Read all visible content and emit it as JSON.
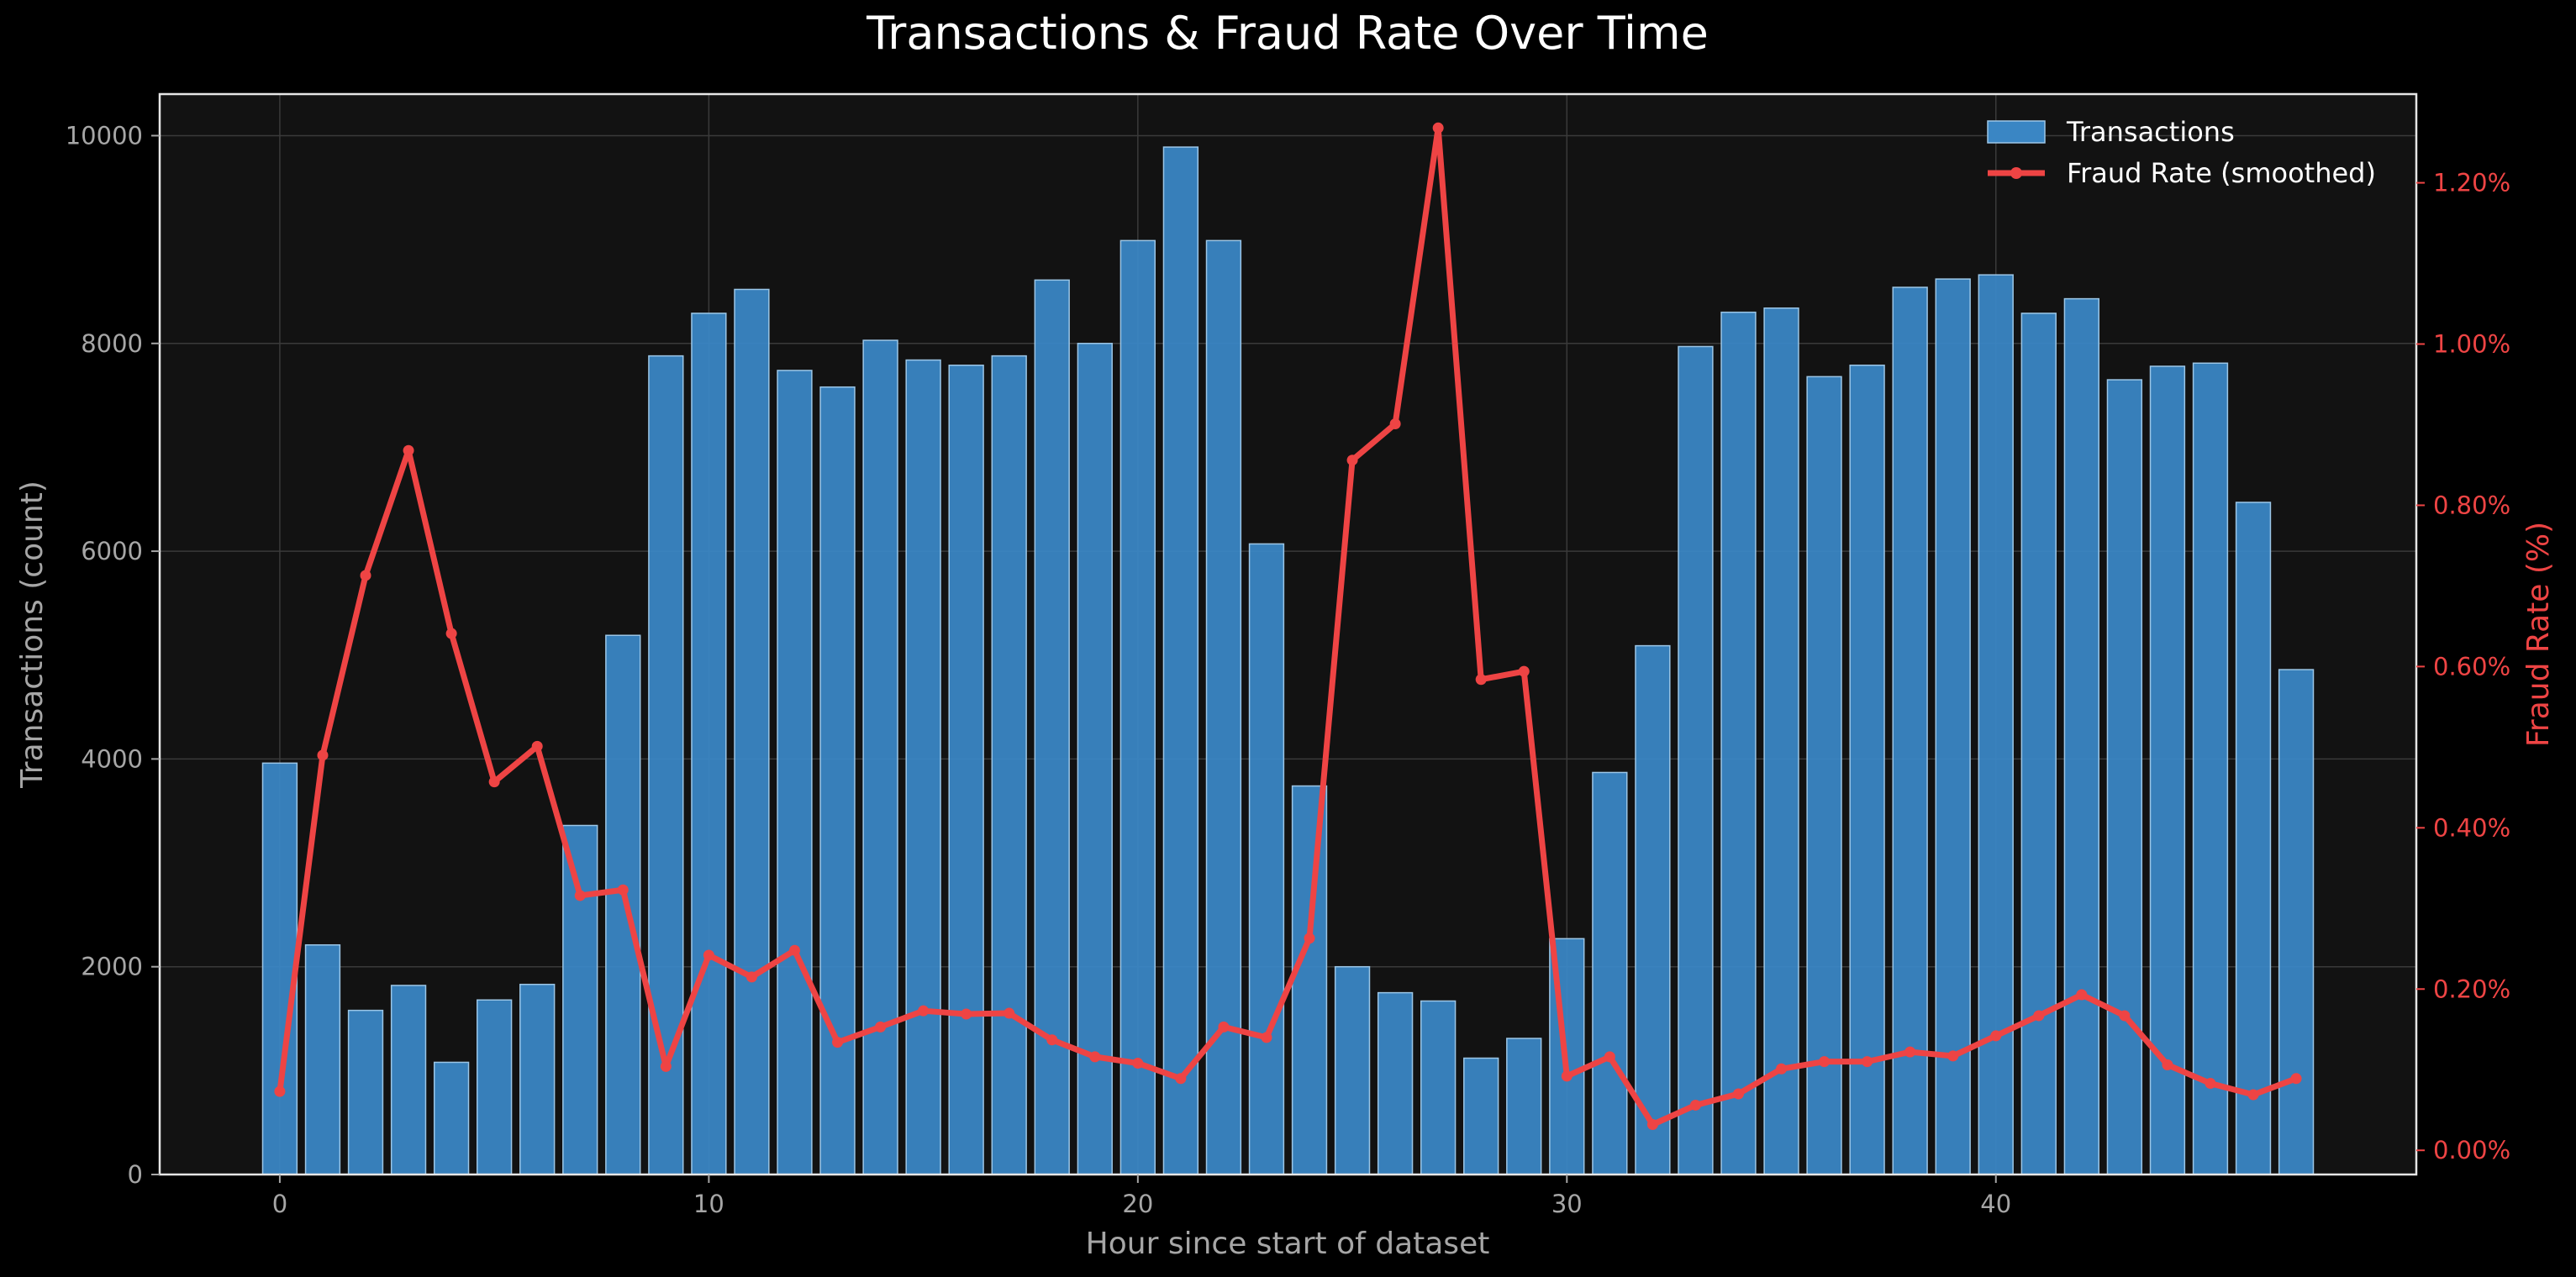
{
  "chart_data": {
    "type": "bar",
    "title": "Transactions & Fraud Rate Over Time",
    "xlabel": "Hour since start of dataset",
    "ylabel": "Transactions (count)",
    "y2label": "Fraud Rate (%)",
    "xlim": [
      -2.8,
      49.8
    ],
    "ylim": [
      0,
      10400
    ],
    "y2lim": [
      -0.03,
      1.31
    ],
    "xticks": [
      0,
      10,
      20,
      30,
      40
    ],
    "yticks": [
      0,
      2000,
      4000,
      6000,
      8000,
      10000
    ],
    "y2ticks": [
      0,
      0.2,
      0.4,
      0.6,
      0.8,
      1.0,
      1.2
    ],
    "y2tick_labels": [
      "0.00%",
      "0.20%",
      "0.40%",
      "0.60%",
      "0.80%",
      "1.00%",
      "1.20%"
    ],
    "grid": true,
    "legend_position": "top-right",
    "x": [
      0,
      1,
      2,
      3,
      4,
      5,
      6,
      7,
      8,
      9,
      10,
      11,
      12,
      13,
      14,
      15,
      16,
      17,
      18,
      19,
      20,
      21,
      22,
      23,
      24,
      25,
      26,
      27,
      28,
      29,
      30,
      31,
      32,
      33,
      34,
      35,
      36,
      37,
      38,
      39,
      40,
      41,
      42,
      43,
      44,
      45,
      46,
      47
    ],
    "series": [
      {
        "name": "Transactions",
        "type": "bar",
        "axis": "left",
        "color": "#3a86c4",
        "values": [
          3960,
          2210,
          1580,
          1820,
          1080,
          1680,
          1830,
          3360,
          5190,
          7880,
          8290,
          8520,
          7740,
          7580,
          8030,
          7840,
          7790,
          7880,
          8610,
          8000,
          8990,
          9890,
          8990,
          6070,
          3740,
          2000,
          1750,
          1670,
          1120,
          1310,
          2270,
          3870,
          5090,
          7970,
          8300,
          8340,
          7680,
          7790,
          8540,
          8620,
          8660,
          8290,
          8430,
          7650,
          7780,
          7810,
          6470,
          4860
        ]
      },
      {
        "name": "Fraud Rate (smoothed)",
        "type": "line",
        "axis": "right",
        "color": "#ee4444",
        "values": [
          0.073,
          0.49,
          0.713,
          0.868,
          0.641,
          0.457,
          0.501,
          0.316,
          0.323,
          0.104,
          0.242,
          0.215,
          0.248,
          0.134,
          0.153,
          0.173,
          0.169,
          0.17,
          0.137,
          0.116,
          0.108,
          0.089,
          0.153,
          0.14,
          0.263,
          0.856,
          0.901,
          1.268,
          0.584,
          0.594,
          0.092,
          0.116,
          0.032,
          0.056,
          0.07,
          0.101,
          0.11,
          0.11,
          0.122,
          0.117,
          0.142,
          0.167,
          0.193,
          0.167,
          0.106,
          0.083,
          0.069,
          0.089
        ]
      }
    ]
  },
  "colors": {
    "background": "#000000",
    "plot_background": "#121212",
    "bar_fill": "#3a86c4",
    "bar_edge": "#9cc6e6",
    "line": "#ee4444",
    "axis_text": "#a6a6a6",
    "title_text": "#ffffff",
    "grid": "#3a3a3a",
    "frame": "#e6e6e6"
  }
}
